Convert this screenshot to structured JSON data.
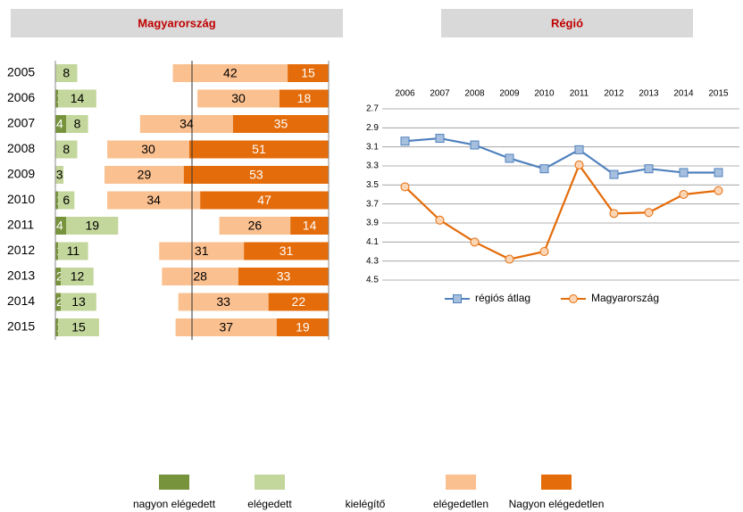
{
  "chart_data": [
    {
      "type": "bar",
      "orientation": "horizontal",
      "stacked": true,
      "title": "Magyarország",
      "categories": [
        "2005",
        "2006",
        "2007",
        "2008",
        "2009",
        "2010",
        "2011",
        "2012",
        "2013",
        "2014",
        "2015"
      ],
      "series": [
        {
          "name": "nagyon elégedett",
          "color": "#77933c",
          "values": [
            null,
            1,
            4,
            null,
            null,
            1,
            4,
            1,
            2,
            2,
            1
          ]
        },
        {
          "name": "elégedett",
          "color": "#c3d69b",
          "values": [
            8,
            14,
            8,
            8,
            3,
            6,
            19,
            11,
            12,
            13,
            15
          ]
        },
        {
          "name": "kielégítő",
          "color": "#ffffff",
          "values": [
            35,
            37,
            19,
            11,
            15,
            12,
            37,
            26,
            25,
            30,
            28
          ]
        },
        {
          "name": "elégedetlen",
          "color": "#fac090",
          "values": [
            42,
            30,
            34,
            30,
            29,
            34,
            26,
            31,
            28,
            33,
            37
          ]
        },
        {
          "name": "Nagyon elégedetlen",
          "color": "#e46c0a",
          "values": [
            15,
            18,
            35,
            51,
            53,
            47,
            14,
            31,
            33,
            22,
            19
          ]
        }
      ],
      "xlim": [
        0,
        100
      ],
      "center_line": 50
    },
    {
      "type": "line",
      "title": "Régió",
      "categories": [
        "2006",
        "2007",
        "2008",
        "2009",
        "2010",
        "2011",
        "2012",
        "2013",
        "2014",
        "2015"
      ],
      "series": [
        {
          "name": "régiós átlag",
          "color": "#4f81bd",
          "marker": "square",
          "values": [
            3.04,
            3.01,
            3.08,
            3.22,
            3.33,
            3.13,
            3.39,
            3.33,
            3.37,
            3.37
          ]
        },
        {
          "name": "Magyarország",
          "color": "#e46c0a",
          "marker": "circle",
          "values": [
            3.52,
            3.87,
            4.1,
            4.28,
            4.2,
            3.29,
            3.8,
            3.79,
            3.6,
            3.56
          ]
        }
      ],
      "ylim": [
        2.7,
        4.5
      ],
      "y_inverted": true,
      "yticks": [
        2.7,
        2.9,
        3.1,
        3.3,
        3.5,
        3.7,
        3.9,
        4.1,
        4.3,
        4.5
      ],
      "grid": true,
      "legend": "bottom"
    }
  ]
}
